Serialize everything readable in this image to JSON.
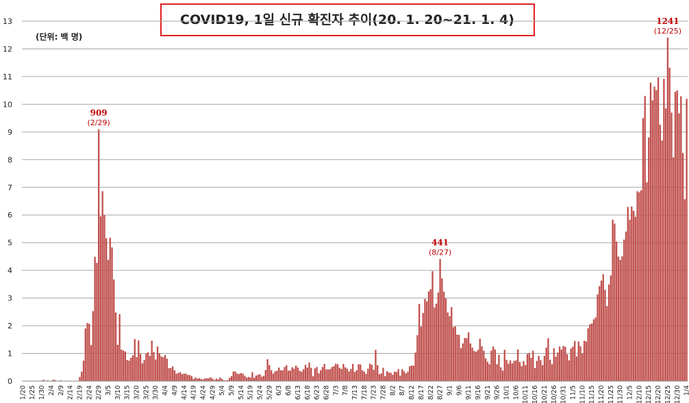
{
  "chart_data": {
    "type": "bar",
    "title": "COVID19, 1일 신규 확진자 추이(20. 1. 20~21. 1. 4)",
    "unit_label": "(단위: 백 명)",
    "color": "#c0504d",
    "grid": true,
    "ylim": [
      0,
      13
    ],
    "yticks": [
      0,
      1,
      2,
      3,
      4,
      5,
      6,
      7,
      8,
      9,
      10,
      11,
      12,
      13
    ],
    "annotations": [
      {
        "label": "909",
        "date": "(2/29)"
      },
      {
        "label": "441",
        "date": "(8/27)"
      },
      {
        "label": "1241",
        "date": "(12/25)"
      }
    ],
    "categories": [
      "1/20",
      null,
      null,
      null,
      null,
      "1/25",
      null,
      null,
      null,
      null,
      "1/30",
      null,
      null,
      null,
      null,
      "2/4",
      null,
      null,
      null,
      null,
      "2/9",
      null,
      null,
      null,
      null,
      "2/14",
      null,
      null,
      null,
      null,
      "2/19",
      null,
      null,
      null,
      null,
      "2/24",
      null,
      null,
      null,
      null,
      "2/29",
      null,
      null,
      null,
      null,
      "3/5",
      null,
      null,
      null,
      null,
      "3/10",
      null,
      null,
      null,
      null,
      "3/15",
      null,
      null,
      null,
      null,
      "3/20",
      null,
      null,
      null,
      null,
      "3/25",
      null,
      null,
      null,
      null,
      "3/30",
      null,
      null,
      null,
      null,
      "4/4",
      null,
      null,
      null,
      null,
      "4/9",
      null,
      null,
      null,
      null,
      "4/14",
      null,
      null,
      null,
      null,
      "4/19",
      null,
      null,
      null,
      null,
      "4/24",
      null,
      null,
      null,
      null,
      "4/29",
      null,
      null,
      null,
      null,
      "5/4",
      null,
      null,
      null,
      null,
      "5/9",
      null,
      null,
      null,
      null,
      "5/14",
      null,
      null,
      null,
      null,
      "5/19",
      null,
      null,
      null,
      null,
      "5/24",
      null,
      null,
      null,
      null,
      "5/29",
      null,
      null,
      null,
      null,
      "6/3",
      null,
      null,
      null,
      null,
      "6/8",
      null,
      null,
      null,
      null,
      "6/13",
      null,
      null,
      null,
      null,
      "6/18",
      null,
      null,
      null,
      null,
      "6/23",
      null,
      null,
      null,
      null,
      "6/28",
      null,
      null,
      null,
      null,
      "7/3",
      null,
      null,
      null,
      null,
      "7/8",
      null,
      null,
      null,
      null,
      "7/13",
      null,
      null,
      null,
      null,
      "7/18",
      null,
      null,
      null,
      null,
      "7/23",
      null,
      null,
      null,
      null,
      "7/28",
      null,
      null,
      null,
      null,
      "8/2",
      null,
      null,
      null,
      null,
      "8/7",
      null,
      null,
      null,
      null,
      "8/12",
      null,
      null,
      null,
      null,
      "8/17",
      null,
      null,
      null,
      null,
      "8/22",
      null,
      null,
      null,
      null,
      "8/27",
      null,
      null,
      null,
      null,
      "9/1",
      null,
      null,
      null,
      null,
      "9/6",
      null,
      null,
      null,
      null,
      "9/11",
      null,
      null,
      null,
      null,
      "9/16",
      null,
      null,
      null,
      null,
      "9/21",
      null,
      null,
      null,
      null,
      "9/26",
      null,
      null,
      null,
      null,
      "10/1",
      null,
      null,
      null,
      null,
      "10/6",
      null,
      null,
      null,
      null,
      "10/11",
      null,
      null,
      null,
      null,
      "10/16",
      null,
      null,
      null,
      null,
      "10/21",
      null,
      null,
      null,
      null,
      "10/26",
      null,
      null,
      null,
      null,
      "10/31",
      null,
      null,
      null,
      null,
      "11/5",
      null,
      null,
      null,
      null,
      "11/10",
      null,
      null,
      null,
      null,
      "11/15",
      null,
      null,
      null,
      null,
      "11/20",
      null,
      null,
      null,
      null,
      "11/25",
      null,
      null,
      null,
      null,
      "11/30",
      null,
      null,
      null,
      null,
      "12/5",
      null,
      null,
      null,
      null,
      "12/10",
      null,
      null,
      null,
      null,
      "12/15",
      null,
      null,
      null,
      null,
      "12/20",
      null,
      null,
      null,
      null,
      "12/25",
      null,
      null,
      null,
      null,
      "12/30",
      null,
      null,
      null,
      null,
      "1/4"
    ],
    "values": [
      0.01,
      0,
      0,
      0,
      0.01,
      0,
      0.01,
      0.01,
      0,
      0,
      0.02,
      0.05,
      0.01,
      0.03,
      0,
      0.01,
      0.05,
      0.04,
      0.01,
      0,
      0.03,
      0.01,
      0,
      0,
      0,
      0,
      0,
      0.01,
      0.01,
      0.01,
      0.15,
      0.34,
      0.74,
      1.9,
      2.1,
      2.07,
      1.3,
      2.53,
      4.49,
      4.27,
      9.09,
      5.95,
      6.86,
      6.0,
      5.16,
      4.38,
      5.18,
      4.83,
      3.67,
      2.48,
      1.31,
      2.42,
      1.14,
      1.1,
      1.07,
      0.76,
      0.74,
      0.84,
      0.93,
      1.52,
      0.87,
      1.47,
      0.98,
      0.64,
      0.76,
      1.0,
      1.04,
      0.91,
      1.46,
      1.05,
      0.78,
      1.25,
      1.01,
      0.89,
      0.86,
      0.94,
      0.81,
      0.47,
      0.47,
      0.53,
      0.39,
      0.27,
      0.3,
      0.32,
      0.25,
      0.27,
      0.27,
      0.22,
      0.22,
      0.18,
      0.08,
      0.13,
      0.09,
      0.11,
      0.08,
      0.06,
      0.1,
      0.1,
      0.1,
      0.14,
      0.09,
      0.04,
      0.09,
      0.06,
      0.13,
      0.08,
      0.03,
      0.02,
      0.04,
      0.12,
      0.18,
      0.34,
      0.35,
      0.27,
      0.26,
      0.29,
      0.27,
      0.19,
      0.13,
      0.15,
      0.13,
      0.32,
      0.12,
      0.2,
      0.23,
      0.25,
      0.16,
      0.19,
      0.4,
      0.79,
      0.58,
      0.39,
      0.27,
      0.35,
      0.38,
      0.49,
      0.39,
      0.39,
      0.51,
      0.57,
      0.38,
      0.38,
      0.5,
      0.45,
      0.56,
      0.49,
      0.37,
      0.34,
      0.43,
      0.59,
      0.49,
      0.67,
      0.48,
      0.17,
      0.46,
      0.51,
      0.28,
      0.39,
      0.51,
      0.62,
      0.42,
      0.42,
      0.43,
      0.51,
      0.54,
      0.63,
      0.61,
      0.48,
      0.44,
      0.62,
      0.5,
      0.45,
      0.35,
      0.44,
      0.62,
      0.33,
      0.39,
      0.61,
      0.6,
      0.39,
      0.34,
      0.26,
      0.45,
      0.63,
      0.59,
      0.41,
      1.13,
      0.58,
      0.25,
      0.28,
      0.48,
      0.18,
      0.36,
      0.31,
      0.3,
      0.23,
      0.34,
      0.33,
      0.43,
      0.2,
      0.43,
      0.36,
      0.28,
      0.34,
      0.54,
      0.56,
      0.56,
      1.03,
      1.66,
      2.79,
      1.97,
      2.46,
      2.97,
      2.88,
      3.24,
      3.32,
      3.97,
      2.66,
      2.8,
      3.2,
      4.41,
      3.71,
      3.23,
      2.99,
      2.48,
      2.35,
      2.67,
      1.95,
      1.98,
      1.68,
      1.67,
      1.19,
      1.36,
      1.56,
      1.55,
      1.76,
      1.36,
      1.21,
      1.09,
      1.06,
      1.13,
      1.53,
      1.26,
      1.1,
      0.82,
      0.7,
      0.61,
      1.1,
      1.25,
      1.14,
      0.61,
      0.95,
      0.5,
      0.38,
      1.13,
      0.77,
      0.63,
      0.75,
      0.64,
      0.73,
      0.75,
      1.14,
      0.69,
      0.54,
      0.72,
      0.58,
      0.98,
      1.02,
      0.84,
      1.1,
      0.47,
      0.73,
      0.91,
      0.76,
      0.58,
      0.91,
      1.21,
      1.55,
      0.77,
      0.61,
      1.19,
      0.88,
      1.03,
      1.25,
      1.14,
      1.27,
      1.24,
      0.97,
      0.75,
      1.18,
      1.25,
      1.45,
      0.89,
      1.43,
      1.26,
      1.0,
      1.46,
      1.43,
      1.91,
      2.05,
      2.08,
      2.23,
      2.3,
      3.13,
      3.43,
      3.63,
      3.86,
      3.3,
      2.71,
      3.49,
      3.82,
      5.83,
      5.69,
      5.04,
      4.5,
      4.38,
      4.51,
      5.11,
      5.4,
      6.29,
      5.83,
      6.31,
      6.15,
      5.94,
      6.86,
      6.82,
      6.89,
      9.5,
      10.3,
      7.18,
      8.8,
      10.78,
      10.14,
      10.64,
      10.51,
      10.97,
      9.26,
      8.69,
      10.92,
      9.85,
      12.41,
      11.32,
      9.7,
      8.08,
      10.45,
      10.5,
      9.67,
      10.29,
      8.24,
      6.57,
      10.2
    ]
  }
}
